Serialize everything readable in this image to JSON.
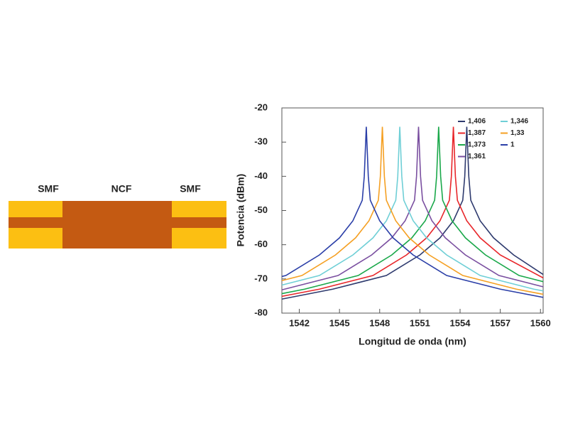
{
  "diagram": {
    "labels": [
      "SMF",
      "NCF",
      "SMF"
    ]
  },
  "chart_data": {
    "type": "line",
    "x_label": "Longitud de onda (nm)",
    "y_label": "Potencia (dBm)",
    "xlim": [
      1540.7,
      1560.2
    ],
    "ylim": [
      -80,
      -20
    ],
    "xticks": [
      1542,
      1545,
      1548,
      1551,
      1554,
      1557,
      1560
    ],
    "yticks": [
      -20,
      -30,
      -40,
      -50,
      -60,
      -70,
      -80
    ],
    "legend": "upper right",
    "series": [
      {
        "name": "1,406",
        "color": "#2e3a6e",
        "x": [
          1540.7,
          1544.5,
          1548.5,
          1551,
          1552.5,
          1553.5,
          1554.2,
          1554.35,
          1554.5,
          1554.65,
          1554.8,
          1555.5,
          1556.5,
          1558,
          1560.2
        ],
        "values": [
          -75.9,
          -73,
          -69,
          -63,
          -58,
          -53,
          -47,
          -40,
          -25.5,
          -40,
          -47,
          -53,
          -58,
          -63,
          -68.7
        ]
      },
      {
        "name": "1,387",
        "color": "#e8262a",
        "x": [
          1540.7,
          1543.5,
          1547.5,
          1550,
          1551.5,
          1552.5,
          1553.2,
          1553.35,
          1553.5,
          1553.65,
          1553.8,
          1554.5,
          1555.5,
          1557,
          1560.2
        ],
        "values": [
          -75.1,
          -73,
          -69,
          -63,
          -58,
          -53,
          -47,
          -40,
          -25.5,
          -40,
          -47,
          -53,
          -58,
          -63,
          -69.7
        ]
      },
      {
        "name": "1,373",
        "color": "#1aa84a",
        "x": [
          1540.7,
          1542.4,
          1546.4,
          1548.9,
          1550.4,
          1551.4,
          1552.1,
          1552.25,
          1552.4,
          1552.55,
          1552.7,
          1553.4,
          1554.4,
          1555.9,
          1558.4,
          1560.2
        ],
        "values": [
          -74.3,
          -73,
          -69,
          -63,
          -58,
          -53,
          -47,
          -40,
          -25.5,
          -40,
          -47,
          -53,
          -58,
          -63,
          -69,
          -70.8
        ]
      },
      {
        "name": "1,361",
        "color": "#7a4fa0",
        "x": [
          1540.7,
          1544.9,
          1547.4,
          1548.9,
          1549.9,
          1550.6,
          1550.75,
          1550.9,
          1551.05,
          1551.2,
          1551.9,
          1552.9,
          1554.4,
          1556.9,
          1560.2
        ],
        "values": [
          -73.2,
          -69,
          -63,
          -58,
          -53,
          -47,
          -40,
          -25.5,
          -40,
          -47,
          -53,
          -58,
          -63,
          -69,
          -72.3
        ]
      },
      {
        "name": "1,346",
        "color": "#6fcfd6",
        "x": [
          1540.7,
          1543.5,
          1546,
          1547.5,
          1548.5,
          1549.2,
          1549.35,
          1549.5,
          1549.65,
          1549.8,
          1550.5,
          1551.5,
          1553,
          1555.5,
          1559.5,
          1560.2
        ],
        "values": [
          -71.8,
          -69,
          -63,
          -58,
          -53,
          -47,
          -40,
          -25.5,
          -40,
          -47,
          -53,
          -58,
          -63,
          -69,
          -73,
          -73.5
        ]
      },
      {
        "name": "1,33",
        "color": "#f5a023",
        "x": [
          1540.7,
          1542.2,
          1544.7,
          1546.2,
          1547.2,
          1547.9,
          1548.05,
          1548.2,
          1548.35,
          1548.5,
          1549.2,
          1550.2,
          1551.7,
          1554.2,
          1558.2,
          1560.2
        ],
        "values": [
          -70.5,
          -69,
          -63,
          -58,
          -53,
          -47,
          -40,
          -25.5,
          -40,
          -47,
          -53,
          -58,
          -63,
          -69,
          -73,
          -74.5
        ]
      },
      {
        "name": "1",
        "color": "#2b3fa8",
        "x": [
          1540.7,
          1541,
          1543.5,
          1545,
          1546,
          1546.7,
          1546.85,
          1547,
          1547.15,
          1547.3,
          1548,
          1549,
          1550.5,
          1553,
          1557,
          1560.2
        ],
        "values": [
          -69.3,
          -69,
          -63,
          -58,
          -53,
          -47,
          -40,
          -25.5,
          -40,
          -47,
          -53,
          -58,
          -63,
          -69,
          -73,
          -75.4
        ]
      }
    ]
  }
}
